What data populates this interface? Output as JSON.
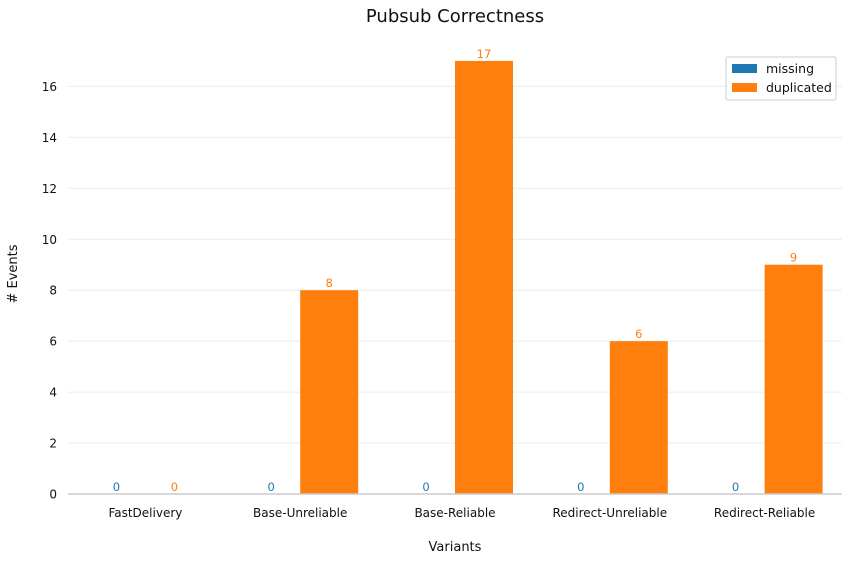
{
  "chart_data": {
    "type": "bar",
    "title": "Pubsub Correctness",
    "xlabel": "Variants",
    "ylabel": "# Events",
    "categories": [
      "FastDelivery",
      "Base-Unreliable",
      "Base-Reliable",
      "Redirect-Unreliable",
      "Redirect-Reliable"
    ],
    "series": [
      {
        "name": "missing",
        "values": [
          0,
          0,
          0,
          0,
          0
        ],
        "color": "#1f77b4"
      },
      {
        "name": "duplicated",
        "values": [
          0,
          8,
          17,
          6,
          9
        ],
        "color": "#ff7f0e"
      }
    ],
    "ylim": [
      0,
      17.9
    ],
    "yticks": [
      0,
      2,
      4,
      6,
      8,
      10,
      12,
      14,
      16
    ],
    "grid": true,
    "legend_position": "top-right",
    "data_labels": true
  }
}
